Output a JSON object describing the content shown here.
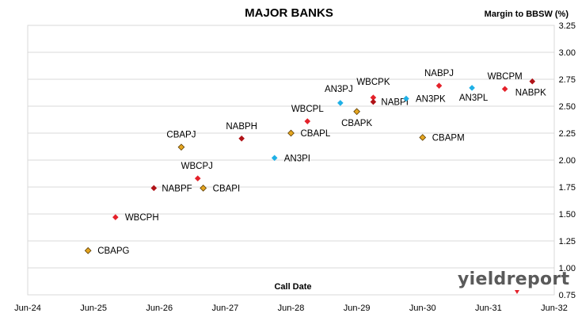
{
  "chart_data": {
    "type": "scatter",
    "title": "MAJOR BANKS",
    "ylabel": "Margin to BBSW (%)",
    "xlabel": "Call Date",
    "ylim": [
      0.75,
      3.25
    ],
    "y_ticks": [
      "0.75",
      "1.00",
      "1.25",
      "1.50",
      "1.75",
      "2.00",
      "2.25",
      "2.50",
      "2.75",
      "3.00",
      "3.25"
    ],
    "x_ticks": [
      "Jun-24",
      "Jun-25",
      "Jun-26",
      "Jun-27",
      "Jun-28",
      "Jun-29",
      "Jun-30",
      "Jun-31",
      "Jun-32"
    ],
    "xlim": [
      "2024-06",
      "2032-06"
    ],
    "grid": "horizontal",
    "y_axis_side": "right",
    "colors": {
      "red": "#e4212a",
      "darkred": "#b01217",
      "orange": "#e5a620",
      "blue": "#1fb0e6"
    },
    "points": [
      {
        "label": "CBAPG",
        "x": "2025-05",
        "y": 1.16,
        "color": "orange"
      },
      {
        "label": "WBCPH",
        "x": "2025-10",
        "y": 1.47,
        "color": "red"
      },
      {
        "label": "NABPF",
        "x": "2026-05",
        "y": 1.74,
        "color": "darkred"
      },
      {
        "label": "CBAPJ",
        "x": "2026-10",
        "y": 2.12,
        "color": "orange"
      },
      {
        "label": "WBCPJ",
        "x": "2027-01",
        "y": 1.83,
        "color": "red"
      },
      {
        "label": "CBAPI",
        "x": "2027-02",
        "y": 1.74,
        "color": "orange"
      },
      {
        "label": "NABPH",
        "x": "2027-09",
        "y": 2.2,
        "color": "darkred"
      },
      {
        "label": "AN3PI",
        "x": "2028-03",
        "y": 2.02,
        "color": "blue"
      },
      {
        "label": "CBAPL",
        "x": "2028-06",
        "y": 2.25,
        "color": "orange"
      },
      {
        "label": "WBCPL",
        "x": "2028-09",
        "y": 2.36,
        "color": "red"
      },
      {
        "label": "AN3PJ",
        "x": "2029-03",
        "y": 2.53,
        "color": "blue"
      },
      {
        "label": "CBAPK",
        "x": "2029-06",
        "y": 2.45,
        "color": "orange"
      },
      {
        "label": "WBCPK",
        "x": "2029-09",
        "y": 2.58,
        "color": "red"
      },
      {
        "label": "NABPI",
        "x": "2029-09",
        "y": 2.54,
        "color": "darkred"
      },
      {
        "label": "AN3PK",
        "x": "2030-03",
        "y": 2.57,
        "color": "blue"
      },
      {
        "label": "CBAPM",
        "x": "2030-06",
        "y": 2.21,
        "color": "orange"
      },
      {
        "label": "NABPJ",
        "x": "2030-09",
        "y": 2.69,
        "color": "red"
      },
      {
        "label": "AN3PL",
        "x": "2031-03",
        "y": 2.67,
        "color": "blue"
      },
      {
        "label": "WBCPM",
        "x": "2031-09",
        "y": 2.66,
        "color": "red"
      },
      {
        "label": "NABPK",
        "x": "2032-02",
        "y": 2.73,
        "color": "darkred"
      }
    ]
  },
  "branding": {
    "logo_text": "yieldreport"
  }
}
